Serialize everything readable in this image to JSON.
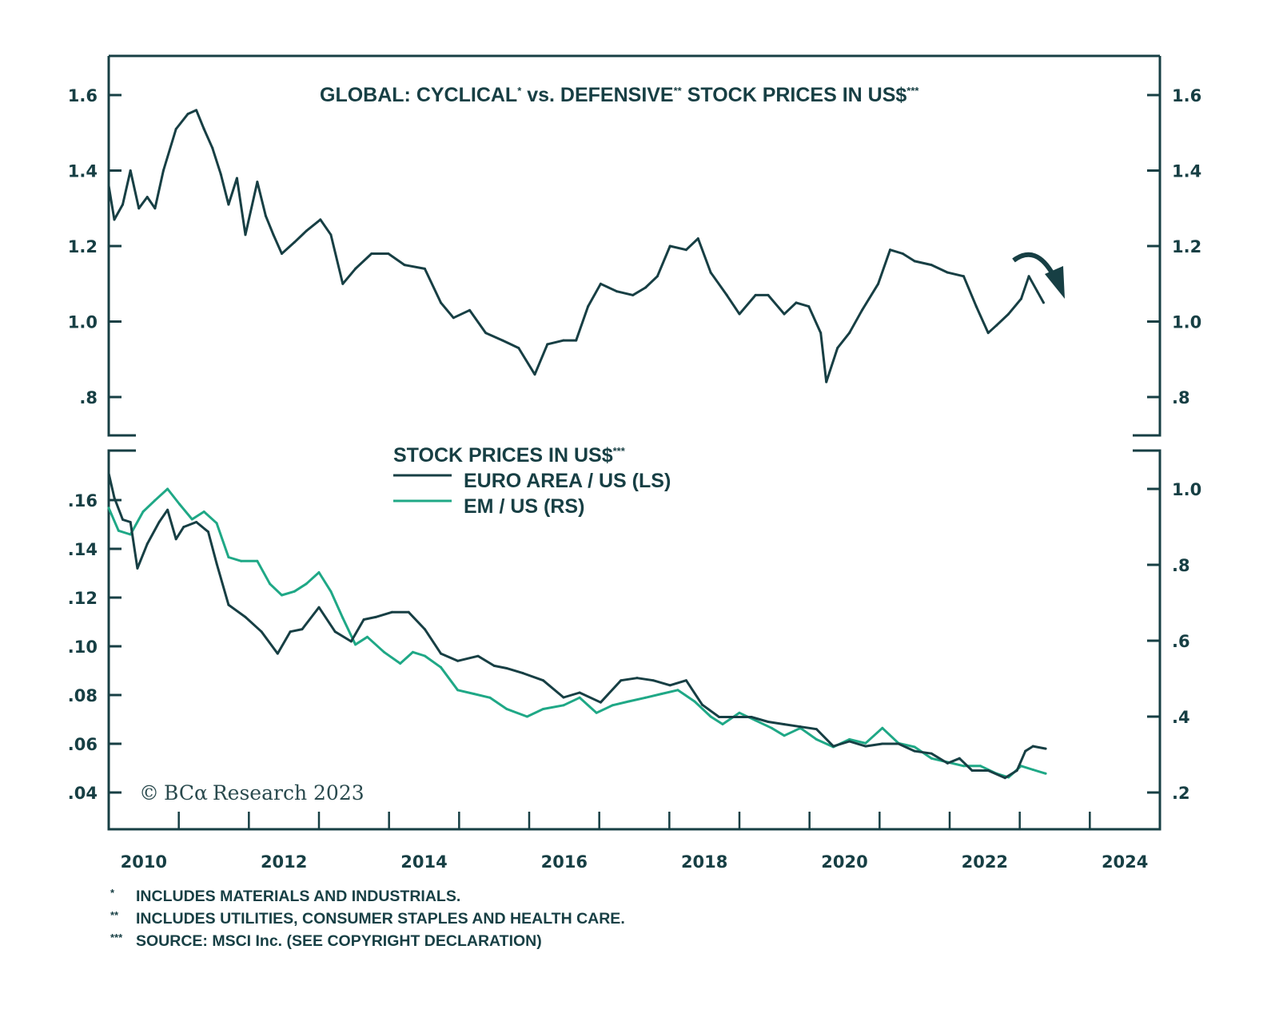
{
  "chart_data": [
    {
      "type": "line",
      "title": "GLOBAL: CYCLICAL* vs. DEFENSIVE** STOCK PRICES IN US$***",
      "title_parts": [
        "GLOBAL: CYCLICAL",
        "*",
        " vs. DEFENSIVE",
        "**",
        " STOCK PRICES IN US$",
        "***"
      ],
      "xlabel": "",
      "ylabel": "",
      "xlim": [
        2010,
        2025
      ],
      "ylim": [
        0.7,
        1.71
      ],
      "y_ticks": [
        1.6,
        1.4,
        1.2,
        1.0,
        0.8
      ],
      "y_tick_labels": [
        "1.6",
        "1.4",
        "1.2",
        "1.0",
        ".8"
      ],
      "right_y_tick_labels": [
        "1.6",
        "1.4",
        "1.2",
        "1.0",
        ".8"
      ],
      "grid": false,
      "annotation": "curved-arrow-pointing-down",
      "series": [
        {
          "name": "Cyclical vs. Defensive",
          "color": "#173f44",
          "x": [
            2010.0,
            2010.08,
            2010.2,
            2010.31,
            2010.43,
            2010.55,
            2010.66,
            2010.78,
            2010.96,
            2011.13,
            2011.25,
            2011.36,
            2011.48,
            2011.6,
            2011.71,
            2011.83,
            2011.95,
            2012.12,
            2012.24,
            2012.35,
            2012.47,
            2012.65,
            2012.82,
            2013.02,
            2013.17,
            2013.34,
            2013.52,
            2013.75,
            2013.99,
            2014.22,
            2014.51,
            2014.74,
            2014.92,
            2015.15,
            2015.38,
            2015.62,
            2015.85,
            2016.08,
            2016.26,
            2016.49,
            2016.67,
            2016.84,
            2017.02,
            2017.25,
            2017.48,
            2017.66,
            2017.83,
            2018.01,
            2018.24,
            2018.41,
            2018.59,
            2018.82,
            2019.0,
            2019.23,
            2019.41,
            2019.64,
            2019.81,
            2019.99,
            2020.16,
            2020.24,
            2020.4,
            2020.57,
            2020.75,
            2020.98,
            2021.15,
            2021.33,
            2021.5,
            2021.74,
            2021.97,
            2022.2,
            2022.38,
            2022.55,
            2022.67,
            2022.84,
            2023.02,
            2023.13,
            2023.25,
            2023.34
          ],
          "y": [
            1.36,
            1.27,
            1.31,
            1.4,
            1.3,
            1.33,
            1.3,
            1.4,
            1.51,
            1.55,
            1.56,
            1.51,
            1.46,
            1.39,
            1.31,
            1.38,
            1.23,
            1.37,
            1.28,
            1.23,
            1.18,
            1.21,
            1.24,
            1.27,
            1.23,
            1.1,
            1.14,
            1.18,
            1.18,
            1.15,
            1.14,
            1.05,
            1.01,
            1.03,
            0.97,
            0.95,
            0.93,
            0.86,
            0.94,
            0.95,
            0.95,
            1.04,
            1.1,
            1.08,
            1.07,
            1.09,
            1.12,
            1.2,
            1.19,
            1.22,
            1.13,
            1.07,
            1.02,
            1.07,
            1.07,
            1.02,
            1.05,
            1.04,
            0.97,
            0.84,
            0.93,
            0.97,
            1.03,
            1.1,
            1.19,
            1.18,
            1.16,
            1.15,
            1.13,
            1.12,
            1.04,
            0.97,
            0.99,
            1.02,
            1.06,
            1.12,
            1.08,
            1.05
          ]
        }
      ]
    },
    {
      "type": "line",
      "title": "STOCK PRICES IN US$***",
      "title_main": "STOCK PRICES IN US$",
      "title_mark": "***",
      "xlabel": "",
      "xlim": [
        2010,
        2025
      ],
      "x_tick_labels": [
        "2010",
        "2012",
        "2014",
        "2016",
        "2018",
        "2020",
        "2022",
        "2024"
      ],
      "x_label_years": [
        2010,
        2012,
        2014,
        2016,
        2018,
        2020,
        2022,
        2024
      ],
      "ylim_left": [
        0.0285,
        0.1805
      ],
      "y_ticks_left": [
        0.16,
        0.14,
        0.12,
        0.1,
        0.08,
        0.06,
        0.04
      ],
      "y_tick_labels_left": [
        ".16",
        ".14",
        ".12",
        ".10",
        ".08",
        ".06",
        ".04"
      ],
      "ylim_right": [
        0.1,
        1.105
      ],
      "y_ticks_right": [
        1.0,
        0.8,
        0.6,
        0.4,
        0.2
      ],
      "y_tick_labels_right": [
        "1.0",
        ".8",
        ".6",
        ".4",
        ".2"
      ],
      "grid": false,
      "legend_position": "top-left",
      "series": [
        {
          "name": "EURO AREA / US (LS)",
          "axis": "left",
          "color": "#173f44",
          "x": [
            2010.0,
            2010.08,
            2010.2,
            2010.31,
            2010.41,
            2010.55,
            2010.72,
            2010.84,
            2010.96,
            2011.07,
            2011.25,
            2011.42,
            2011.54,
            2011.71,
            2011.95,
            2012.18,
            2012.41,
            2012.59,
            2012.76,
            2013.0,
            2013.23,
            2013.46,
            2013.64,
            2013.81,
            2014.04,
            2014.28,
            2014.51,
            2014.74,
            2014.98,
            2015.27,
            2015.5,
            2015.68,
            2015.91,
            2016.2,
            2016.49,
            2016.72,
            2017.02,
            2017.31,
            2017.54,
            2017.77,
            2018.01,
            2018.24,
            2018.47,
            2018.71,
            2018.94,
            2019.17,
            2019.41,
            2019.64,
            2019.87,
            2020.1,
            2020.34,
            2020.57,
            2020.8,
            2021.04,
            2021.27,
            2021.5,
            2021.74,
            2021.97,
            2022.14,
            2022.32,
            2022.55,
            2022.79,
            2022.96,
            2023.08,
            2023.19,
            2023.37
          ],
          "y": [
            0.171,
            0.161,
            0.152,
            0.151,
            0.132,
            0.142,
            0.151,
            0.156,
            0.144,
            0.149,
            0.151,
            0.147,
            0.134,
            0.117,
            0.112,
            0.106,
            0.097,
            0.106,
            0.107,
            0.116,
            0.106,
            0.102,
            0.111,
            0.112,
            0.114,
            0.114,
            0.107,
            0.097,
            0.094,
            0.096,
            0.092,
            0.091,
            0.089,
            0.086,
            0.079,
            0.081,
            0.077,
            0.086,
            0.087,
            0.086,
            0.084,
            0.086,
            0.076,
            0.071,
            0.071,
            0.071,
            0.069,
            0.068,
            0.067,
            0.066,
            0.059,
            0.061,
            0.059,
            0.06,
            0.06,
            0.057,
            0.056,
            0.052,
            0.054,
            0.049,
            0.049,
            0.046,
            0.049,
            0.057,
            0.059,
            0.058
          ]
        },
        {
          "name": "EM / US (RS)",
          "axis": "right",
          "color": "#1fa886",
          "x": [
            2010.0,
            2010.14,
            2010.31,
            2010.49,
            2010.66,
            2010.84,
            2011.01,
            2011.19,
            2011.36,
            2011.54,
            2011.71,
            2011.89,
            2012.12,
            2012.3,
            2012.47,
            2012.65,
            2012.82,
            2013.0,
            2013.17,
            2013.34,
            2013.52,
            2013.69,
            2013.93,
            2014.16,
            2014.34,
            2014.51,
            2014.74,
            2014.98,
            2015.21,
            2015.44,
            2015.68,
            2015.97,
            2016.2,
            2016.49,
            2016.72,
            2016.96,
            2017.19,
            2017.42,
            2017.66,
            2017.89,
            2018.12,
            2018.36,
            2018.59,
            2018.76,
            2019.0,
            2019.23,
            2019.46,
            2019.64,
            2019.87,
            2020.1,
            2020.34,
            2020.57,
            2020.8,
            2021.04,
            2021.27,
            2021.5,
            2021.74,
            2021.97,
            2022.2,
            2022.44,
            2022.67,
            2022.84,
            2023.02,
            2023.19,
            2023.37
          ],
          "y": [
            0.95,
            0.89,
            0.88,
            0.94,
            0.97,
            1.0,
            0.96,
            0.92,
            0.94,
            0.91,
            0.82,
            0.81,
            0.81,
            0.75,
            0.72,
            0.73,
            0.75,
            0.78,
            0.73,
            0.66,
            0.59,
            0.61,
            0.57,
            0.54,
            0.57,
            0.56,
            0.53,
            0.47,
            0.46,
            0.45,
            0.42,
            0.4,
            0.42,
            0.43,
            0.45,
            0.41,
            0.43,
            0.44,
            0.45,
            0.46,
            0.47,
            0.44,
            0.4,
            0.38,
            0.41,
            0.39,
            0.37,
            0.35,
            0.37,
            0.34,
            0.32,
            0.34,
            0.33,
            0.37,
            0.33,
            0.32,
            0.29,
            0.28,
            0.27,
            0.27,
            0.25,
            0.24,
            0.27,
            0.26,
            0.25
          ]
        }
      ]
    }
  ],
  "copyright": {
    "symbol": "©",
    "brand": "BCα",
    "text": "Research 2023"
  },
  "footnotes": [
    {
      "mark": "*",
      "text": "INCLUDES MATERIALS AND INDUSTRIALS."
    },
    {
      "mark": "**",
      "text": "INCLUDES UTILITIES, CONSUMER STAPLES AND HEALTH CARE."
    },
    {
      "mark": "***",
      "text": "SOURCE: MSCI Inc. (SEE COPYRIGHT DECLARATION)"
    }
  ]
}
